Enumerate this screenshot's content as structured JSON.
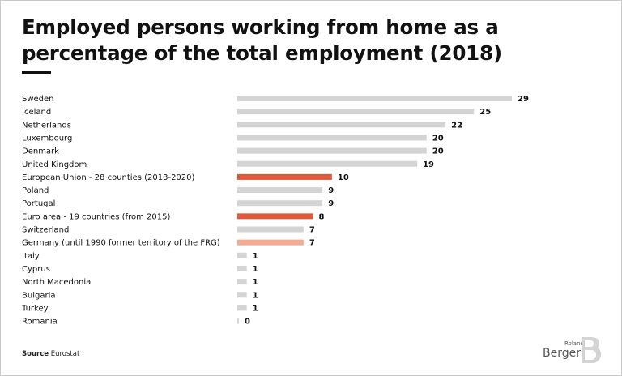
{
  "title": "Employed persons working from home as a percentage of the total employment (2018)",
  "source": {
    "label": "Source",
    "text": "Eurostat"
  },
  "brand": {
    "line1": "Roland",
    "line2": "Berger"
  },
  "colors": {
    "default": "#d4d4d4",
    "highlight": "#e0583c",
    "highlight_light": "#f2ac93",
    "text": "#111111"
  },
  "chart_data": {
    "type": "bar",
    "orientation": "horizontal",
    "categories": [
      "Sweden",
      "Iceland",
      "Netherlands",
      "Luxembourg",
      "Denmark",
      "United Kingdom",
      "European Union - 28 counties (2013-2020)",
      "Poland",
      "Portugal",
      "Euro area - 19 countries (from 2015)",
      "Switzerland",
      "Germany (until 1990 former territory of the FRG)",
      "Italy",
      "Cyprus",
      "North Macedonia",
      "Bulgaria",
      "Turkey",
      "Romania"
    ],
    "values": [
      29,
      25,
      22,
      20,
      20,
      19,
      10,
      9,
      9,
      8,
      7,
      7,
      1,
      1,
      1,
      1,
      1,
      0
    ],
    "bar_colors": [
      "#d4d4d4",
      "#d4d4d4",
      "#d4d4d4",
      "#d4d4d4",
      "#d4d4d4",
      "#d4d4d4",
      "#e0583c",
      "#d4d4d4",
      "#d4d4d4",
      "#e0583c",
      "#d4d4d4",
      "#f2ac93",
      "#d4d4d4",
      "#d4d4d4",
      "#d4d4d4",
      "#d4d4d4",
      "#d4d4d4",
      "#d4d4d4"
    ],
    "xlim": [
      0,
      29
    ],
    "data_labels": true,
    "grid": false,
    "legend": "none"
  }
}
